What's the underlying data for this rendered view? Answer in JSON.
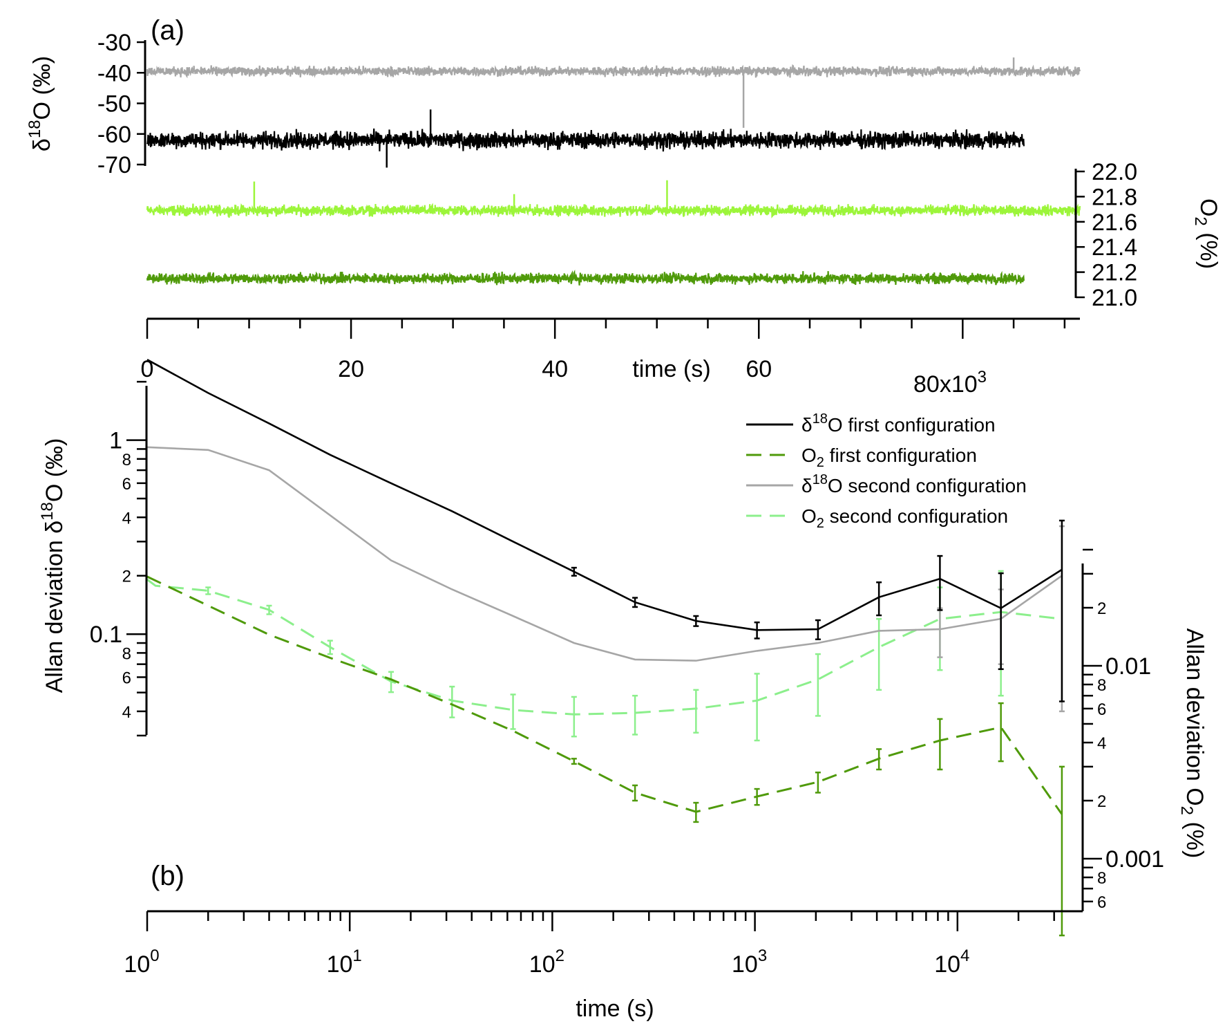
{
  "panel_a": {
    "label": "(a)",
    "y_left": {
      "label_prefix": "δ",
      "label_sup": "18",
      "label_suffix": "O (‰)",
      "ticks": [
        "-30",
        "-40",
        "-50",
        "-60",
        "-70"
      ]
    },
    "y_right": {
      "label_main": "O",
      "label_sub": "2",
      "label_suffix": " (%)",
      "ticks": [
        "22.0",
        "21.8",
        "21.6",
        "21.4",
        "21.2",
        "21.0"
      ]
    },
    "x": {
      "label": "time (s)",
      "ticks": [
        "0",
        "20",
        "40",
        "60"
      ],
      "last_tick_main": "80x10",
      "last_tick_sup": "3"
    }
  },
  "panel_b": {
    "label": "(b)",
    "y_left": {
      "label_main": "Allan deviation δ",
      "label_sup": "18",
      "label_suffix": "O (‰)",
      "major_ticks": [
        "1",
        "0.1"
      ],
      "minor_ticks": [
        "8",
        "6",
        "4",
        "2",
        "8",
        "6",
        "4"
      ]
    },
    "y_right": {
      "label_main": "Allan deviation O",
      "label_sub": "2",
      "label_suffix": " (%)",
      "major_ticks": [
        "0.01",
        "0.001"
      ],
      "minor_ticks": [
        "2",
        "8",
        "6",
        "4",
        "2",
        "8",
        "6"
      ]
    },
    "x": {
      "label": "time (s)",
      "tick_base": "10",
      "tick_exps": [
        "0",
        "1",
        "2",
        "3",
        "4"
      ]
    },
    "legend": [
      {
        "prefix": "δ",
        "sup": "18",
        "sub": "",
        "suffix": "O first configuration"
      },
      {
        "prefix": "O",
        "sup": "",
        "sub": "2",
        "suffix": " first configuration"
      },
      {
        "prefix": "δ",
        "sup": "18",
        "sub": "",
        "suffix": "O second configuration"
      },
      {
        "prefix": "O",
        "sup": "",
        "sub": "2",
        "suffix": " second configuration"
      }
    ]
  },
  "colors": {
    "d18O_first": "#000000",
    "d18O_second": "#a6a6a6",
    "O2_first": "#4f9a0a",
    "O2_second": "#8cef8c",
    "O2_second_timeseries": "#9cf53a"
  },
  "chart_data": [
    {
      "type": "line",
      "panel": "(a)",
      "xlabel": "time (s)",
      "x_unit_multiplier": 1000,
      "xlim": [
        0,
        91.5
      ],
      "series": [
        {
          "axis": "left",
          "x_end": 86,
          "mean": -62,
          "noise_amplitude": 4,
          "spikes": [
            {
              "x": 23.5,
              "y": -71
            },
            {
              "x": 27.8,
              "y": -52
            }
          ]
        },
        {
          "axis": "left",
          "x_end": 91.5,
          "mean": -39.5,
          "noise_amplitude": 2.2,
          "spikes": [
            {
              "x": 58.5,
              "y": -58
            },
            {
              "x": 85,
              "y": -35
            }
          ]
        },
        {
          "axis": "right",
          "x_end": 91.5,
          "mean": 21.69,
          "noise_amplitude": 0.06,
          "spikes": [
            {
              "x": 10.5,
              "y": 21.92
            },
            {
              "x": 51,
              "y": 21.93
            },
            {
              "x": 36,
              "y": 21.82
            }
          ]
        },
        {
          "axis": "right",
          "x_end": 86,
          "mean": 21.15,
          "noise_amplitude": 0.06,
          "spikes": []
        }
      ],
      "ylim_left": [
        -70,
        -30
      ],
      "ylim_right": [
        21.0,
        22.0
      ]
    },
    {
      "type": "line",
      "panel": "(b)",
      "xscale": "log",
      "xlabel": "time (s)",
      "xlim": [
        1,
        36000
      ],
      "ylim_left": [
        0.03,
        2.7
      ],
      "ylim_right": [
        0.00055,
        0.04
      ],
      "series": [
        {
          "name": "δ18O first configuration",
          "axis": "left",
          "style": "solid",
          "x": [
            1,
            2,
            4,
            8,
            16,
            32,
            64,
            128,
            256,
            512,
            1024,
            2048,
            4096,
            8192,
            16384,
            32768
          ],
          "y": [
            2.6,
            1.75,
            1.22,
            0.84,
            0.6,
            0.43,
            0.3,
            0.21,
            0.146,
            0.117,
            0.105,
            0.106,
            0.155,
            0.193,
            0.136,
            0.215
          ],
          "err": [
            0,
            0,
            0,
            0,
            0,
            0,
            0,
            0.01,
            0.008,
            0.007,
            0.01,
            0.012,
            0.03,
            0.06,
            0.07,
            0.17
          ]
        },
        {
          "name": "δ18O second configuration",
          "axis": "left",
          "style": "solid",
          "x": [
            1,
            2,
            4,
            8,
            16,
            32,
            64,
            128,
            256,
            512,
            1024,
            2048,
            4096,
            8192,
            16384,
            32768
          ],
          "y": [
            0.92,
            0.89,
            0.7,
            0.41,
            0.24,
            0.17,
            0.124,
            0.09,
            0.074,
            0.073,
            0.082,
            0.09,
            0.104,
            0.106,
            0.12,
            0.2
          ],
          "err": [
            0,
            0,
            0,
            0,
            0,
            0,
            0,
            0,
            0,
            0,
            0,
            0,
            0,
            0.03,
            0.05,
            0.16
          ]
        },
        {
          "name": "O2 first configuration",
          "axis": "right",
          "style": "dashed",
          "x": [
            1,
            2,
            4,
            8,
            16,
            32,
            64,
            128,
            256,
            512,
            1024,
            2048,
            4096,
            8192,
            16384,
            32768
          ],
          "y": [
            0.029,
            0.0205,
            0.0145,
            0.011,
            0.0085,
            0.0063,
            0.0046,
            0.0032,
            0.0022,
            0.00175,
            0.0021,
            0.0025,
            0.0033,
            0.0041,
            0.0048,
            0.0017
          ],
          "err": [
            0,
            0,
            0,
            0,
            0,
            0,
            0,
            0.0001,
            0.0002,
            0.0002,
            0.0002,
            0.0003,
            0.0004,
            0.0012,
            0.0016,
            0.0013
          ]
        },
        {
          "name": "O2 second configuration",
          "axis": "right",
          "style": "dashed",
          "x": [
            1,
            1.1,
            2,
            4,
            8,
            16,
            32,
            64,
            128,
            256,
            512,
            1024,
            2048,
            4096,
            8192,
            16384,
            32768
          ],
          "y": [
            0.028,
            0.026,
            0.0245,
            0.0195,
            0.0125,
            0.0083,
            0.0066,
            0.0059,
            0.0056,
            0.0057,
            0.006,
            0.0066,
            0.0085,
            0.0125,
            0.0175,
            0.019,
            0.0175
          ],
          "err": [
            0,
            0,
            0.001,
            0.001,
            0.001,
            0.001,
            0.0012,
            0.0012,
            0.0013,
            0.0013,
            0.0015,
            0.0025,
            0.003,
            0.005,
            0.008,
            0.012,
            0
          ]
        }
      ]
    }
  ]
}
